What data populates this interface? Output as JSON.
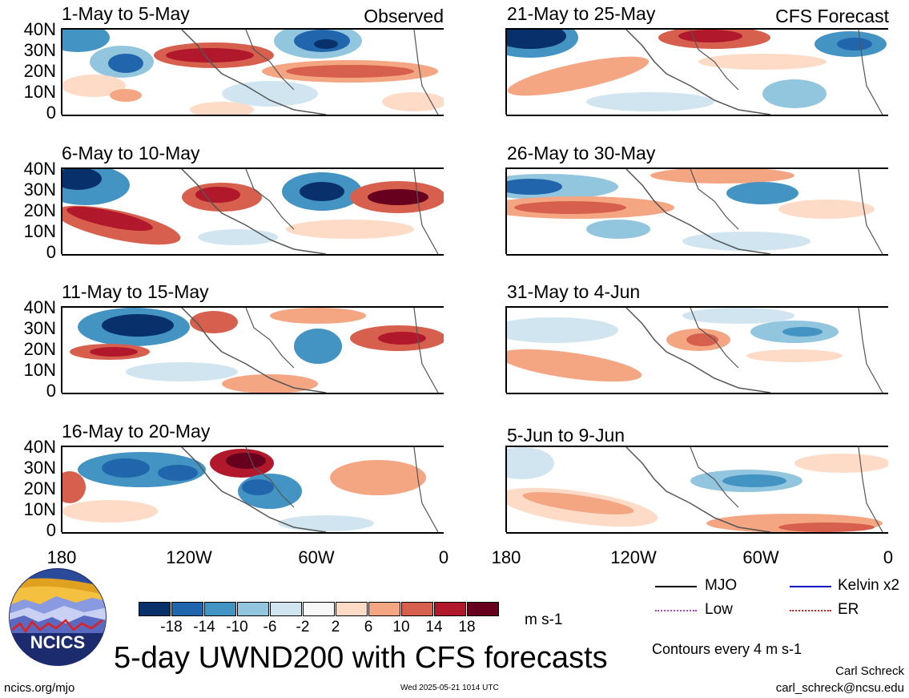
{
  "panels": {
    "obs": [
      {
        "title": "1-May to 5-May",
        "tag": "Observed"
      },
      {
        "title": "6-May to 10-May",
        "tag": ""
      },
      {
        "title": "11-May to 15-May",
        "tag": ""
      },
      {
        "title": "16-May to 20-May",
        "tag": ""
      }
    ],
    "fcst": [
      {
        "title": "21-May to 25-May",
        "tag": "CFS Forecast"
      },
      {
        "title": "26-May to 30-May",
        "tag": ""
      },
      {
        "title": "31-May to 4-Jun",
        "tag": ""
      },
      {
        "title": "5-Jun to 9-Jun",
        "tag": ""
      }
    ]
  },
  "y_ticks": [
    "40N",
    "30N",
    "20N",
    "10N",
    "0"
  ],
  "x_ticks": [
    "180",
    "120W",
    "60W",
    "0"
  ],
  "colorbar": {
    "labels": [
      "-18",
      "-14",
      "-10",
      "-6",
      "-2",
      "2",
      "6",
      "10",
      "14",
      "18"
    ],
    "colors": [
      "#08306b",
      "#2166ac",
      "#4393c3",
      "#92c5de",
      "#d1e5f0",
      "#f7f7f7",
      "#fddbc7",
      "#f4a582",
      "#d6604d",
      "#b2182b",
      "#67001f"
    ],
    "units": "m s-1"
  },
  "legend": {
    "mjo": "MJO",
    "kelvin": "Kelvin x2",
    "low": "Low",
    "er": "ER",
    "contours_note": "Contours every 4 m s-1"
  },
  "legend_colors": {
    "mjo": "#000000",
    "kelvin": "#1010c0",
    "low": "#b040e0",
    "er": "#e02020"
  },
  "footer": {
    "main_title": "5-day UWND200 with CFS forecasts",
    "site": "ncics.org/mjo",
    "timestamp": "Wed 2025-05-21 1014 UTC",
    "author": "Carl Schreck",
    "email": "carl_schreck@ncsu.edu",
    "logo_text": "NCICS"
  }
}
